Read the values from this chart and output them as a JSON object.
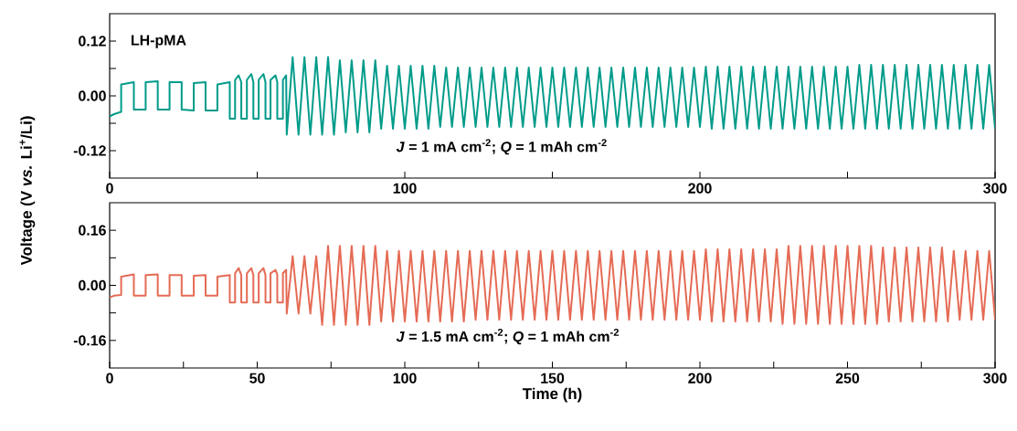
{
  "chart_data": [
    {
      "type": "line",
      "title": "LH-pMA",
      "ylabel": "Voltage (V *vs.* Li$^{+}$/Li)",
      "annotations": [
        "*J* = 1 mA cm$^{-2}$; *Q* = 1 mAh cm$^{-2}$"
      ],
      "xlim": [
        0,
        300
      ],
      "xticks": [
        0,
        {
          "value": 50,
          "label": null
        },
        100,
        {
          "value": 150,
          "label": null
        },
        200,
        {
          "value": 250,
          "label": null
        },
        300
      ],
      "ylim": [
        -0.18,
        0.18
      ],
      "yticks": [
        -0.12,
        {
          "value": -0.06,
          "label": null
        },
        {
          "value": 0,
          "label": "0.00"
        },
        {
          "value": 0.06,
          "label": null
        },
        0.12
      ],
      "series": [
        {
          "color": "#009b8a",
          "x": [
            0,
            1.5,
            3.9,
            3.9,
            8.2,
            8.2,
            12.2,
            12.2,
            16.3,
            16.3,
            20.3,
            20.3,
            24.4,
            24.4,
            28.5,
            28.5,
            32.5,
            32.5,
            36.5,
            36.5,
            40.7,
            40.7,
            42.5,
            42.5,
            43.7,
            44.6,
            44.6,
            46.5,
            46.5,
            48,
            48.7,
            48.7,
            50.5,
            50.5,
            52.1,
            52.8,
            52.8,
            54.5,
            54.5,
            56.2,
            56.8,
            56.8,
            58.7,
            58.7,
            59.8,
            60,
            62,
            64,
            66,
            68,
            70,
            72,
            74,
            76,
            78,
            80,
            82,
            84,
            86,
            88,
            90,
            92,
            94,
            96,
            98,
            100,
            102,
            104,
            106,
            108,
            110,
            112,
            114,
            116,
            118,
            120,
            122,
            124,
            126,
            128,
            130,
            132,
            134,
            136,
            138,
            140,
            142,
            144,
            146,
            148,
            150,
            152,
            154,
            156,
            158,
            160,
            162,
            164,
            166,
            168,
            170,
            172,
            174,
            176,
            178,
            180,
            182,
            184,
            186,
            188,
            190,
            192,
            194,
            196,
            198,
            200,
            202,
            204,
            206,
            208,
            210,
            212,
            214,
            216,
            218,
            220,
            222,
            224,
            226,
            228,
            230,
            232,
            234,
            236,
            238,
            240,
            242,
            244,
            246,
            248,
            250,
            252,
            254,
            256,
            258,
            260,
            262,
            264,
            266,
            268,
            270,
            272,
            274,
            276,
            278,
            280,
            282,
            284,
            286,
            288,
            290,
            292,
            294,
            296,
            298,
            300
          ],
          "values": [
            -0.045,
            -0.04,
            -0.035,
            0.025,
            0.03,
            -0.03,
            -0.03,
            0.03,
            0.032,
            -0.03,
            -0.03,
            0.03,
            0.03,
            -0.03,
            -0.032,
            0.028,
            0.03,
            -0.032,
            -0.032,
            0.025,
            0.03,
            -0.05,
            -0.05,
            0.035,
            0.045,
            0.03,
            -0.05,
            -0.05,
            0.035,
            0.048,
            0.03,
            -0.05,
            -0.05,
            0.035,
            0.048,
            0.03,
            -0.05,
            -0.05,
            0.035,
            0.045,
            0.03,
            -0.05,
            -0.05,
            0.035,
            0.045,
            -0.085,
            0.085,
            -0.085,
            0.085,
            -0.085,
            0.085,
            -0.085,
            0.085,
            -0.085,
            0.078,
            -0.08,
            0.078,
            -0.08,
            0.078,
            -0.08,
            0.078,
            -0.072,
            0.066,
            -0.072,
            0.066,
            -0.072,
            0.066,
            -0.072,
            0.066,
            -0.072,
            0.066,
            -0.068,
            0.062,
            -0.068,
            0.062,
            -0.068,
            0.062,
            -0.068,
            0.062,
            -0.068,
            0.062,
            -0.068,
            0.062,
            -0.068,
            0.062,
            -0.068,
            0.062,
            -0.068,
            0.062,
            -0.068,
            0.062,
            -0.068,
            0.062,
            -0.068,
            0.062,
            -0.068,
            0.062,
            -0.068,
            0.062,
            -0.068,
            0.062,
            -0.068,
            0.062,
            -0.068,
            0.062,
            -0.068,
            0.062,
            -0.068,
            0.062,
            -0.068,
            0.062,
            -0.068,
            0.062,
            -0.068,
            0.062,
            -0.068,
            0.064,
            -0.072,
            0.064,
            -0.072,
            0.064,
            -0.072,
            0.064,
            -0.072,
            0.064,
            -0.072,
            0.064,
            -0.072,
            0.064,
            -0.072,
            0.064,
            -0.072,
            0.064,
            -0.072,
            0.064,
            -0.072,
            0.064,
            -0.072,
            0.064,
            -0.072,
            0.064,
            -0.072,
            0.068,
            -0.072,
            0.068,
            -0.072,
            0.068,
            -0.072,
            0.068,
            -0.072,
            0.068,
            -0.072,
            0.068,
            -0.072,
            0.068,
            -0.072,
            0.068,
            -0.072,
            0.068,
            -0.072,
            0.068,
            -0.072,
            0.068,
            -0.072,
            0.068,
            -0.072
          ]
        }
      ]
    },
    {
      "type": "line",
      "xlabel": "Time (h)",
      "annotations": [
        "*J* = 1.5 mA cm$^{-2}$; *Q* = 1 mAh cm$^{-2}$"
      ],
      "xlim": [
        0,
        300
      ],
      "xticks": [
        0,
        {
          "value": 25,
          "label": null
        },
        50,
        {
          "value": 75,
          "label": null
        },
        100,
        {
          "value": 125,
          "label": null
        },
        150,
        {
          "value": 175,
          "label": null
        },
        200,
        {
          "value": 225,
          "label": null
        },
        250,
        {
          "value": 275,
          "label": null
        },
        300
      ],
      "ylim": [
        -0.24,
        0.24
      ],
      "yticks": [
        -0.16,
        {
          "value": -0.08,
          "label": null
        },
        {
          "value": 0,
          "label": "0.00"
        },
        {
          "value": 0.08,
          "label": null
        },
        0.16
      ],
      "series": [
        {
          "color": "#e56b55",
          "x": [
            0,
            1.5,
            3.9,
            3.9,
            8.2,
            8.2,
            12.2,
            12.2,
            16.3,
            16.3,
            20.3,
            20.3,
            24.4,
            24.4,
            28.5,
            28.5,
            32.5,
            32.5,
            36.5,
            36.5,
            40.7,
            40.7,
            42.5,
            42.5,
            43.7,
            44.6,
            44.6,
            46.5,
            46.5,
            48,
            48.7,
            48.7,
            50.5,
            50.5,
            52.1,
            52.8,
            52.8,
            54.5,
            54.5,
            56.2,
            56.8,
            56.8,
            58.7,
            58.7,
            59.8,
            60,
            62,
            64,
            66,
            68,
            70,
            72,
            74,
            76,
            78,
            80,
            82,
            84,
            86,
            88,
            90,
            92,
            94,
            96,
            98,
            100,
            102,
            104,
            106,
            108,
            110,
            112,
            114,
            116,
            118,
            120,
            122,
            124,
            126,
            128,
            130,
            132,
            134,
            136,
            138,
            140,
            142,
            144,
            146,
            148,
            150,
            152,
            154,
            156,
            158,
            160,
            162,
            164,
            166,
            168,
            170,
            172,
            174,
            176,
            178,
            180,
            182,
            184,
            186,
            188,
            190,
            192,
            194,
            196,
            198,
            200,
            202,
            204,
            206,
            208,
            210,
            212,
            214,
            216,
            218,
            220,
            222,
            224,
            226,
            228,
            230,
            232,
            234,
            236,
            238,
            240,
            242,
            244,
            246,
            248,
            250,
            252,
            254,
            256,
            258,
            260,
            262,
            264,
            266,
            268,
            270,
            272,
            274,
            276,
            278,
            280,
            282,
            284,
            286,
            288,
            290,
            292,
            294,
            296,
            298,
            300
          ],
          "values": [
            -0.035,
            -0.03,
            -0.028,
            0.025,
            0.032,
            -0.03,
            -0.03,
            0.03,
            0.032,
            -0.03,
            -0.03,
            0.03,
            0.03,
            -0.03,
            -0.03,
            0.028,
            0.03,
            -0.03,
            -0.03,
            0.025,
            0.03,
            -0.05,
            -0.05,
            0.035,
            0.05,
            0.03,
            -0.05,
            -0.05,
            0.035,
            0.05,
            0.03,
            -0.05,
            -0.05,
            0.035,
            0.05,
            0.03,
            -0.05,
            -0.05,
            0.035,
            0.045,
            0.03,
            -0.05,
            -0.05,
            0.035,
            0.045,
            -0.082,
            0.085,
            -0.082,
            0.085,
            -0.082,
            0.085,
            -0.115,
            0.115,
            -0.115,
            0.115,
            -0.115,
            0.115,
            -0.115,
            0.115,
            -0.115,
            0.115,
            -0.105,
            0.1,
            -0.105,
            0.1,
            -0.105,
            0.1,
            -0.105,
            0.1,
            -0.105,
            0.1,
            -0.105,
            0.1,
            -0.105,
            0.1,
            -0.105,
            0.1,
            -0.1,
            0.1,
            -0.1,
            0.1,
            -0.1,
            0.1,
            -0.1,
            0.1,
            -0.1,
            0.1,
            -0.1,
            0.1,
            -0.1,
            0.1,
            -0.1,
            0.1,
            -0.1,
            0.1,
            -0.1,
            0.1,
            -0.1,
            0.1,
            -0.1,
            0.1,
            -0.1,
            0.1,
            -0.1,
            0.1,
            -0.1,
            0.1,
            -0.1,
            0.1,
            -0.1,
            0.1,
            -0.1,
            0.1,
            -0.1,
            0.1,
            -0.1,
            0.105,
            -0.105,
            0.105,
            -0.105,
            0.105,
            -0.105,
            0.105,
            -0.105,
            0.105,
            -0.105,
            0.105,
            -0.105,
            0.105,
            -0.112,
            0.115,
            -0.112,
            0.115,
            -0.112,
            0.115,
            -0.112,
            0.115,
            -0.112,
            0.115,
            -0.112,
            0.115,
            -0.112,
            0.115,
            -0.112,
            0.115,
            -0.112,
            0.11,
            -0.105,
            0.11,
            -0.105,
            0.11,
            -0.105,
            0.11,
            -0.105,
            0.11,
            -0.105,
            0.11,
            -0.105,
            0.1,
            -0.1,
            0.1,
            -0.1,
            0.1,
            -0.1,
            0.1,
            -0.1
          ]
        }
      ]
    }
  ]
}
